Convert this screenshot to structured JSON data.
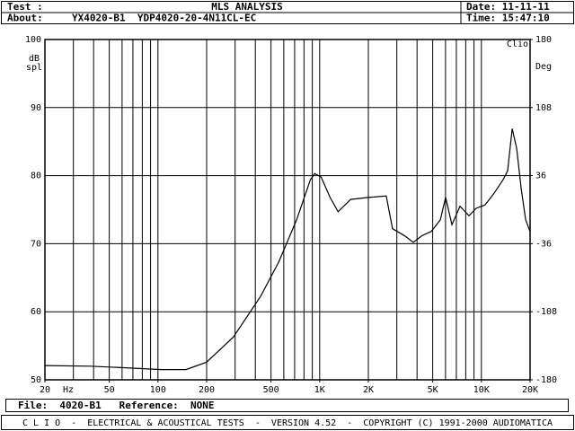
{
  "header": {
    "test_label": "Test :",
    "title": "MLS ANALYSIS",
    "date": "Date: 11-11-11",
    "about_label": "About:",
    "about": "YX4020-B1  YDP4020-20-4N11CL-EC",
    "time": "Time: 15:47:10"
  },
  "chart_data": {
    "type": "line",
    "watermark": "Clio",
    "ylabel": [
      "dB",
      "spl"
    ],
    "y2label": "Deg",
    "xlabel": "Hz",
    "xscale": "log",
    "x": [
      20,
      38,
      72,
      105,
      149,
      200,
      293,
      432,
      558,
      720,
      876,
      931,
      1020,
      1160,
      1300,
      1554,
      2000,
      2581,
      2820,
      3330,
      3790,
      4310,
      4900,
      5570,
      6010,
      6570,
      7370,
      8380,
      9280,
      10540,
      11980,
      13620,
      14520,
      15500,
      16520,
      17610,
      18780,
      20000
    ],
    "series": [
      {
        "color": "#000000",
        "values": [
          52.1,
          52.0,
          51.7,
          51.5,
          51.5,
          52.6,
          56.3,
          62.3,
          67.3,
          73.5,
          79.4,
          80.3,
          79.8,
          76.8,
          74.7,
          76.5,
          76.8,
          77.0,
          72.2,
          71.2,
          70.2,
          71.2,
          71.8,
          73.5,
          76.8,
          72.8,
          75.5,
          74.1,
          75.2,
          75.7,
          77.4,
          79.4,
          80.7,
          86.9,
          84.0,
          78.1,
          73.5,
          71.8
        ]
      }
    ],
    "xlim": [
      20,
      20000
    ],
    "xticks": [
      20,
      50,
      100,
      200,
      500,
      {
        "value": 1000,
        "label": "1K"
      },
      {
        "value": 2000,
        "label": "2K"
      },
      {
        "value": 5000,
        "label": "5K"
      },
      {
        "value": 10000,
        "label": "10K"
      },
      {
        "value": 20000,
        "label": "20K"
      }
    ],
    "xgrid": [
      30,
      40,
      50,
      60,
      70,
      80,
      90,
      100,
      200,
      300,
      400,
      500,
      600,
      700,
      800,
      900,
      1000,
      2000,
      3000,
      4000,
      5000,
      6000,
      7000,
      8000,
      9000,
      10000
    ],
    "ylim": [
      50,
      100
    ],
    "yticks": [
      50,
      60,
      70,
      80,
      90,
      100
    ],
    "y2lim": [
      -180,
      180
    ],
    "y2ticks": [
      -180,
      -108,
      -36,
      36,
      108,
      180
    ],
    "grid": true
  },
  "footer": {
    "file": "File:  4020-B1   Reference:  NONE",
    "status": "C L I O  -  ELECTRICAL & ACOUSTICAL TESTS  -  VERSION 4.52  -  COPYRIGHT (C) 1991-2000 AUDIOMATICA"
  }
}
